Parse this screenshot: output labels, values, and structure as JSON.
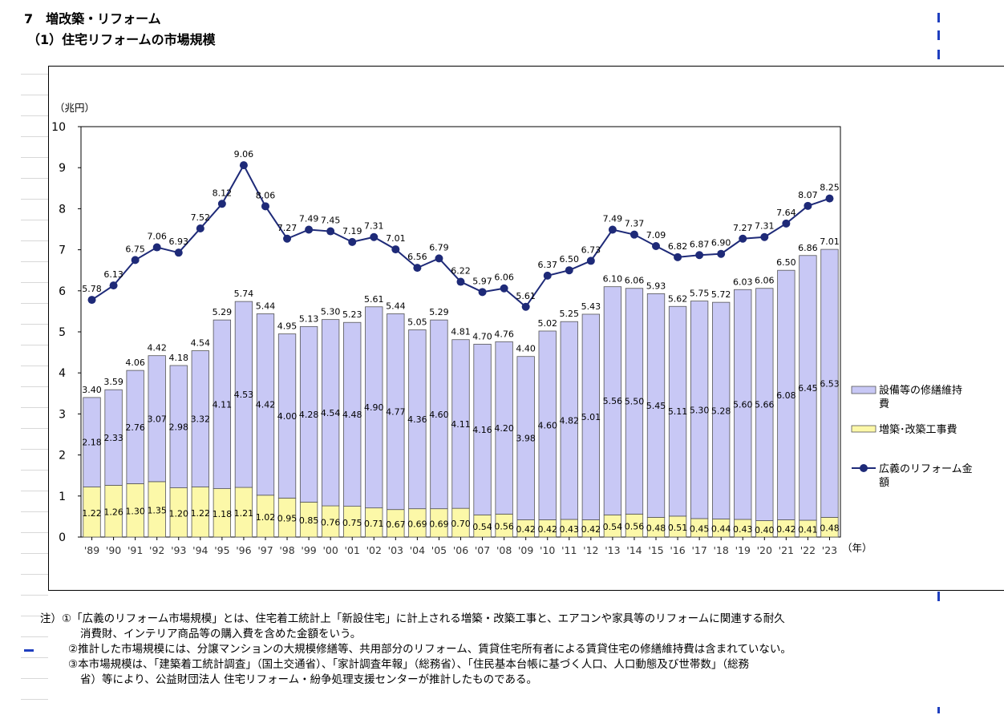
{
  "heading": {
    "title": "7　増改築・リフォーム",
    "subtitle": "（1）住宅リフォームの市場規模"
  },
  "colors": {
    "bar_upper": "#c8c8f5",
    "bar_lower": "#fcf8a8",
    "line": "#1e2a78",
    "bar_border": "#555555"
  },
  "chart_data": {
    "type": "bar",
    "stacked": true,
    "ylabel": "（兆円）",
    "xunit": "（年）",
    "ylim": [
      0,
      10
    ],
    "yticks": [
      0,
      1,
      2,
      3,
      4,
      5,
      6,
      7,
      8,
      9,
      10
    ],
    "categories": [
      "'89",
      "'90",
      "'91",
      "'92",
      "'93",
      "'94",
      "'95",
      "'96",
      "'97",
      "'98",
      "'99",
      "'00",
      "'01",
      "'02",
      "'03",
      "'04",
      "'05",
      "'06",
      "'07",
      "'08",
      "'09",
      "'10",
      "'11",
      "'12",
      "'13",
      "'14",
      "'15",
      "'16",
      "'17",
      "'18",
      "'19",
      "'20",
      "'21",
      "'22",
      "'23"
    ],
    "series": [
      {
        "name": "増築･改築工事費",
        "kind": "bar",
        "values": [
          1.22,
          1.26,
          1.3,
          1.35,
          1.2,
          1.22,
          1.18,
          1.21,
          1.02,
          0.95,
          0.85,
          0.76,
          0.75,
          0.71,
          0.67,
          0.69,
          0.69,
          0.7,
          0.54,
          0.56,
          0.42,
          0.42,
          0.43,
          0.42,
          0.54,
          0.56,
          0.48,
          0.51,
          0.45,
          0.44,
          0.43,
          0.4,
          0.42,
          0.41,
          0.48
        ]
      },
      {
        "name": "設備等の修繕維持費",
        "kind": "bar",
        "values": [
          2.18,
          2.33,
          2.76,
          3.07,
          2.98,
          3.32,
          4.11,
          4.53,
          4.42,
          4.0,
          4.28,
          4.54,
          4.48,
          4.9,
          4.77,
          4.36,
          4.6,
          4.11,
          4.16,
          4.2,
          3.98,
          4.6,
          4.82,
          5.01,
          5.56,
          5.5,
          5.45,
          5.11,
          5.3,
          5.28,
          5.6,
          5.66,
          6.08,
          6.45,
          6.53
        ]
      },
      {
        "name": "広義のリフォーム金額",
        "kind": "line",
        "values": [
          5.78,
          6.13,
          6.75,
          7.06,
          6.93,
          7.52,
          8.12,
          9.06,
          8.06,
          7.27,
          7.49,
          7.45,
          7.19,
          7.31,
          7.01,
          6.56,
          6.79,
          6.22,
          5.97,
          6.06,
          5.61,
          6.37,
          6.5,
          6.73,
          7.49,
          7.37,
          7.09,
          6.82,
          6.87,
          6.9,
          7.27,
          7.31,
          7.64,
          8.07,
          8.25
        ]
      }
    ],
    "bar_totals": [
      "3.40",
      "3.59",
      "4.06",
      "4.42",
      "4.18",
      "4.54",
      "5.29",
      "5.74",
      "5.44",
      "4.95",
      "5.13",
      "5.30",
      "5.23",
      "5.61",
      "5.44",
      "5.05",
      "5.29",
      "4.81",
      "4.70",
      "4.76",
      "4.40",
      "5.02",
      "5.25",
      "5.43",
      "6.10",
      "6.06",
      "5.93",
      "5.62",
      "5.75",
      "5.72",
      "6.03",
      "6.06",
      "6.50",
      "6.86",
      "7.01"
    ],
    "legend": [
      {
        "label": "設備等の修繕維持費",
        "kind": "bar-upper"
      },
      {
        "label": "増築･改築工事費",
        "kind": "bar-lower"
      },
      {
        "label": "広義のリフォーム金額",
        "kind": "line"
      }
    ],
    "legend_position": "right"
  },
  "notes": [
    "注）①「広義のリフォーム市場規模」とは、住宅着工統計上「新設住宅」に計上される増築・改築工事と、エアコンや家具等のリフォームに関連する耐久",
    "消費財、インテリア商品等の購入費を含めた金額をいう。",
    "②推計した市場規模には、分譲マンションの大規模修繕等、共用部分のリフォーム、賃貸住宅所有者による賃貸住宅の修繕維持費は含まれていない。",
    "③本市場規模は、「建築着工統計調査」（国土交通省）、「家計調査年報」（総務省）、「住民基本台帳に基づく人口、人口動態及び世帯数」（総務",
    "省）等により、公益財団法人 住宅リフォーム・紛争処理支援センターが推計したものである。"
  ]
}
